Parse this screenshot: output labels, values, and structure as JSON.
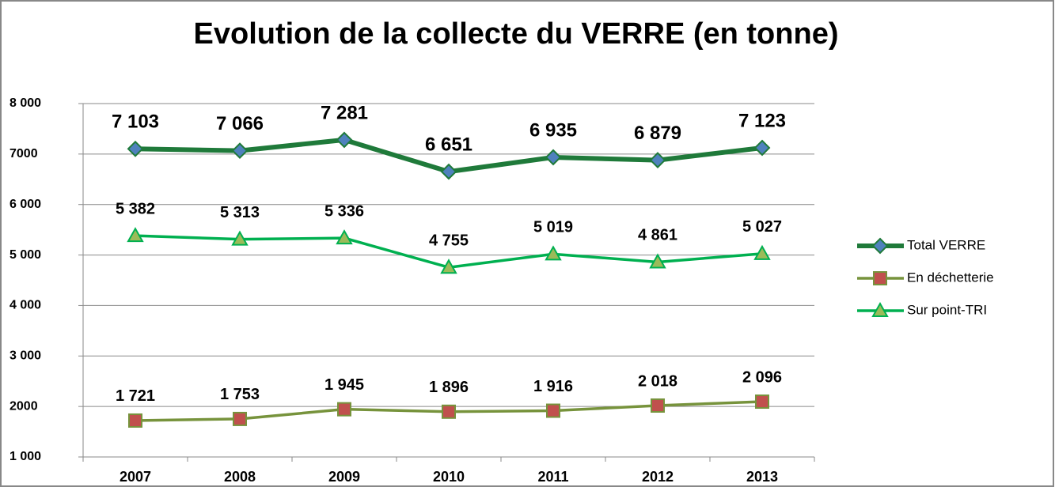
{
  "chart_data": {
    "type": "line",
    "title": "Evolution de la collecte du VERRE  (en   tonne)",
    "categories": [
      "2007",
      "2008",
      "2009",
      "2010",
      "2011",
      "2012",
      "2013"
    ],
    "series": [
      {
        "name": "Total VERRE",
        "color": "#1f7a3a",
        "marker_color": "#4f81bd",
        "marker": "diamond",
        "values": [
          7103,
          7066,
          7281,
          6651,
          6935,
          6879,
          7123
        ],
        "value_labels": [
          "7 103",
          "7 066",
          "7 281",
          "6 651",
          "6 935",
          "6 879",
          "7 123"
        ]
      },
      {
        "name": "En déchetterie",
        "color": "#77933c",
        "marker_color": "#c0504d",
        "marker": "square",
        "values": [
          1721,
          1753,
          1945,
          1896,
          1916,
          2018,
          2096
        ],
        "value_labels": [
          "1 721",
          "1 753",
          "1 945",
          "1 896",
          "1 916",
          "2 018",
          "2 096"
        ]
      },
      {
        "name": "Sur point-TRI",
        "color": "#00b050",
        "marker_color": "#9bbb59",
        "marker": "triangle",
        "values": [
          5382,
          5313,
          5336,
          4755,
          5019,
          4861,
          5027
        ],
        "value_labels": [
          "5 382",
          "5 313",
          "5 336",
          "4 755",
          "5 019",
          "4 861",
          "5 027"
        ]
      }
    ],
    "ylim": [
      1000,
      8000
    ],
    "yticks": [
      {
        "value": 1000,
        "label": "1 000"
      },
      2000,
      {
        "value": 3000,
        "label": "3 000"
      },
      {
        "value": 4000,
        "label": "4 000"
      },
      {
        "value": 5000,
        "label": "5 000"
      },
      {
        "value": 6000,
        "label": "6 000"
      },
      7000,
      {
        "value": 8000,
        "label": "8 000"
      }
    ],
    "grid": true,
    "legend": "right"
  }
}
